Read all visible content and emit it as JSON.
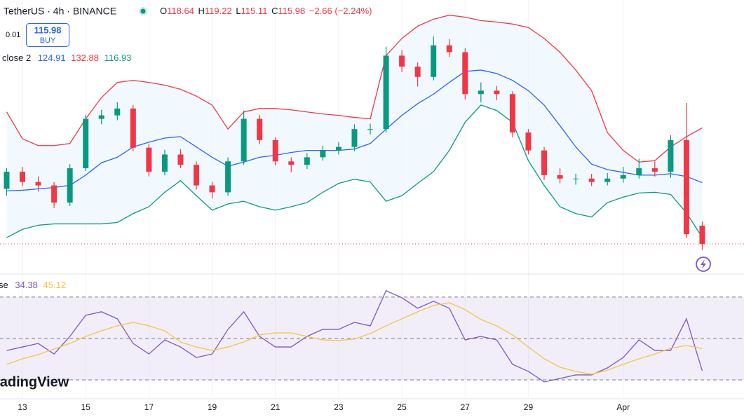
{
  "chart_data": [
    {
      "type": "candlestick",
      "title": "TetherUS · 4h · BINANCE",
      "ohlc_labels": [
        "O",
        "H",
        "L",
        "C"
      ],
      "change": "−2.66 (−2.24%)",
      "order_panel": {
        "spread": 0.01,
        "action": "BUY"
      },
      "indicator_label": "close 2",
      "up_color": "#089981",
      "down_color": "#f23645",
      "band_color": "#2196f3",
      "last_price_line": true,
      "xlim": [
        12.29,
        35.82
      ],
      "xticks": [
        13,
        15,
        17,
        19,
        21,
        23,
        25,
        27,
        29,
        {
          "value": 32,
          "label": "Apr"
        }
      ],
      "ylim": [
        111.7,
        151.5
      ],
      "x": [
        12.5,
        13,
        13.5,
        14,
        14.5,
        15,
        15.5,
        16,
        16.5,
        17,
        17.5,
        18,
        18.5,
        19,
        19.5,
        20,
        20.5,
        21,
        21.5,
        22,
        22.5,
        23,
        23.5,
        24,
        24.5,
        25,
        25.5,
        26,
        26.5,
        27,
        27.5,
        28,
        28.5,
        29,
        29.5,
        30,
        30.5,
        31,
        31.5,
        32,
        32.5,
        33,
        33.5,
        34,
        34.5
      ],
      "open": [
        124,
        126.5,
        125,
        124.5,
        122,
        127,
        134.2,
        134.7,
        135.7,
        130,
        126.5,
        129,
        127.5,
        124.5,
        123.5,
        128,
        134.2,
        131.1,
        128,
        127.5,
        128.6,
        129.6,
        130.1,
        132.7,
        132.7,
        143.4,
        141.8,
        140.3,
        144.9,
        143.9,
        137.8,
        138.3,
        137.8,
        132.2,
        129.6,
        126,
        125.5,
        125.5,
        125,
        125.5,
        126,
        127,
        126.5,
        131.1,
        118.64
      ],
      "high": [
        127,
        127.2,
        125.8,
        125,
        127.6,
        134.8,
        135.5,
        136.6,
        136.2,
        130.6,
        129.7,
        129.8,
        128,
        125,
        128.6,
        135.4,
        134.8,
        131.5,
        128.6,
        129.2,
        130.3,
        130.8,
        133.4,
        133.5,
        144.7,
        144.2,
        142.4,
        146.2,
        145.8,
        144.5,
        139.5,
        139,
        138.2,
        132.7,
        130.1,
        127,
        126.2,
        126.2,
        126.3,
        127.2,
        128.4,
        128,
        131.8,
        136.5,
        119.22
      ],
      "low": [
        123,
        124.4,
        123.6,
        121.2,
        121.5,
        126.6,
        133.4,
        134,
        129.5,
        125.8,
        126,
        127,
        123.9,
        122.6,
        123,
        127.5,
        130.5,
        127.4,
        126.4,
        126.9,
        128.1,
        129,
        129.5,
        131.9,
        132.2,
        141,
        138.9,
        139.8,
        143.2,
        137,
        136.6,
        136.9,
        131.5,
        129,
        125.3,
        124.8,
        124.6,
        124.4,
        124.5,
        124.9,
        125.5,
        125.8,
        125.6,
        116.8,
        115.11
      ],
      "close": [
        126.5,
        125,
        124.5,
        122,
        127,
        134.2,
        134.7,
        135.7,
        130,
        126.5,
        129,
        127.5,
        124.5,
        123.5,
        128,
        134.2,
        131.1,
        128,
        127.5,
        128.6,
        129.6,
        130.1,
        132.7,
        132.7,
        143.4,
        141.8,
        140.3,
        144.9,
        143.9,
        137.8,
        138.3,
        137.8,
        132.2,
        129.6,
        126,
        125.5,
        125.5,
        125,
        125.5,
        126,
        127,
        126.5,
        131.1,
        117.4,
        115.98
      ],
      "series": [
        {
          "color": "#2962ff",
          "values": [
            123.7,
            123.8,
            124.0,
            124.2,
            124.5,
            126.0,
            127.8,
            128.6,
            130.1,
            130.8,
            131.4,
            131.6,
            130.1,
            128.6,
            127.3,
            127.9,
            128.6,
            128.9,
            129.3,
            129.6,
            129.6,
            129.6,
            129.8,
            130.6,
            132.7,
            134.7,
            136.4,
            137.8,
            139.5,
            141.1,
            141.3,
            140.8,
            139.8,
            138.3,
            136.2,
            133.2,
            130.1,
            127.6,
            126.8,
            126.4,
            126.0,
            126.0,
            126.2,
            125.8,
            124.91
          ]
        },
        {
          "color": "#f23645",
          "values": [
            135.2,
            131.3,
            130.3,
            130.3,
            130.6,
            134.2,
            137.3,
            139.5,
            139.8,
            139.5,
            139.1,
            138.5,
            137.5,
            136.2,
            132.7,
            135.2,
            135.7,
            135.7,
            135.5,
            135.2,
            134.9,
            134.7,
            134.4,
            134.2,
            143.4,
            145.9,
            147.7,
            148.7,
            149.3,
            149.0,
            148.5,
            148.3,
            148.0,
            147.5,
            145.9,
            143.9,
            141.3,
            138.3,
            132.2,
            129.6,
            127.9,
            128.1,
            130.1,
            131.6,
            132.88
          ]
        },
        {
          "color": "#089981",
          "values": [
            116.9,
            118.1,
            118.7,
            118.9,
            118.9,
            118.9,
            118.9,
            119.1,
            120.4,
            121.4,
            123.5,
            125.2,
            123.0,
            120.9,
            121.8,
            122.2,
            121.4,
            120.9,
            121.4,
            122.0,
            123.5,
            124.8,
            125.4,
            125.0,
            122.2,
            123.0,
            124.8,
            126.5,
            129.6,
            133.7,
            136.2,
            135.4,
            133.7,
            128.1,
            124.5,
            121.4,
            120.4,
            119.9,
            122.0,
            122.8,
            123.4,
            123.5,
            123.2,
            120.5,
            116.93
          ]
        }
      ]
    },
    {
      "type": "line",
      "indicator_label": "se",
      "band_color": "#7e57c2",
      "hlines": [
        70,
        50,
        30
      ],
      "xlim": [
        12.29,
        35.82
      ],
      "ylim": [
        21.2,
        80.8
      ],
      "x": [
        12.5,
        13,
        13.5,
        14,
        14.5,
        15,
        15.5,
        16,
        16.5,
        17,
        17.5,
        18,
        18.5,
        19,
        19.5,
        20,
        20.5,
        21,
        21.5,
        22,
        22.5,
        23,
        23.5,
        24,
        24.5,
        25,
        25.5,
        26,
        26.5,
        27,
        27.5,
        28,
        28.5,
        29,
        29.5,
        30,
        30.5,
        31,
        31.5,
        32,
        32.5,
        33,
        33.5,
        34,
        34.5
      ],
      "series": [
        {
          "color": "#7e57c2",
          "values": [
            44.2,
            45.9,
            47.6,
            42.5,
            51.0,
            61.2,
            62.9,
            59.5,
            47.6,
            42.5,
            49.3,
            45.9,
            40.8,
            42.5,
            54.4,
            62.9,
            51.0,
            45.9,
            45.9,
            51.0,
            54.4,
            54.4,
            57.8,
            56.1,
            73.1,
            69.7,
            64.6,
            68.0,
            64.6,
            49.3,
            51.0,
            49.3,
            37.5,
            34.1,
            29.0,
            30.7,
            32.4,
            32.4,
            35.8,
            40.8,
            49.3,
            44.2,
            44.2,
            59.5,
            34.38
          ]
        },
        {
          "color": "#f5c542",
          "values": [
            37.5,
            40.2,
            42.2,
            44.9,
            47.6,
            51.0,
            53.7,
            56.1,
            57.8,
            56.1,
            53.7,
            48.3,
            45.9,
            44.2,
            45.9,
            48.3,
            51.7,
            52.7,
            52.7,
            51.0,
            49.3,
            49.0,
            49.7,
            52.4,
            56.1,
            59.5,
            62.9,
            65.9,
            67.3,
            63.9,
            59.2,
            56.1,
            51.7,
            45.9,
            40.2,
            36.1,
            34.1,
            32.7,
            34.7,
            37.5,
            40.2,
            42.5,
            45.3,
            46.6,
            45.12
          ]
        }
      ]
    }
  ],
  "logo": "radingView"
}
